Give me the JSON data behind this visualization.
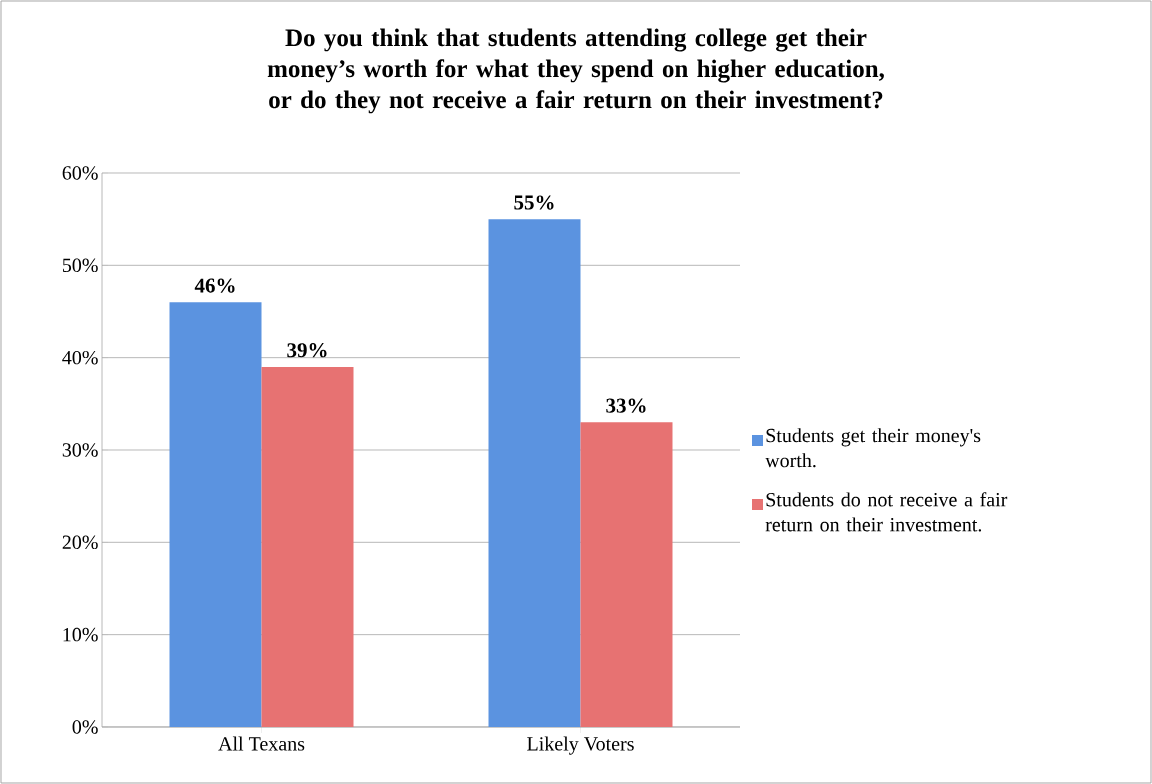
{
  "chart_data": {
    "type": "bar",
    "title": "Do you think that students attending college get their money’s worth for what they spend on higher education, or do they not receive a fair return on their investment?",
    "categories": [
      "All Texans",
      "Likely Voters"
    ],
    "series": [
      {
        "name": "Students get their money's worth.",
        "color": "#5b93e0",
        "values": [
          46,
          55
        ],
        "value_labels": [
          "46%",
          "55%"
        ]
      },
      {
        "name": "Students do not receive a fair return on their investment.",
        "color": "#e77272",
        "values": [
          39,
          33
        ],
        "value_labels": [
          "39%",
          "33%"
        ]
      }
    ],
    "ylim": [
      0,
      60
    ],
    "yticks": [
      {
        "value": 0,
        "label": "0%"
      },
      {
        "value": 10,
        "label": "10%"
      },
      {
        "value": 20,
        "label": "20%"
      },
      {
        "value": 30,
        "label": "30%"
      },
      {
        "value": 40,
        "label": "40%"
      },
      {
        "value": 50,
        "label": "50%"
      },
      {
        "value": 60,
        "label": "60%"
      }
    ],
    "grid": "y",
    "legend": "right"
  }
}
